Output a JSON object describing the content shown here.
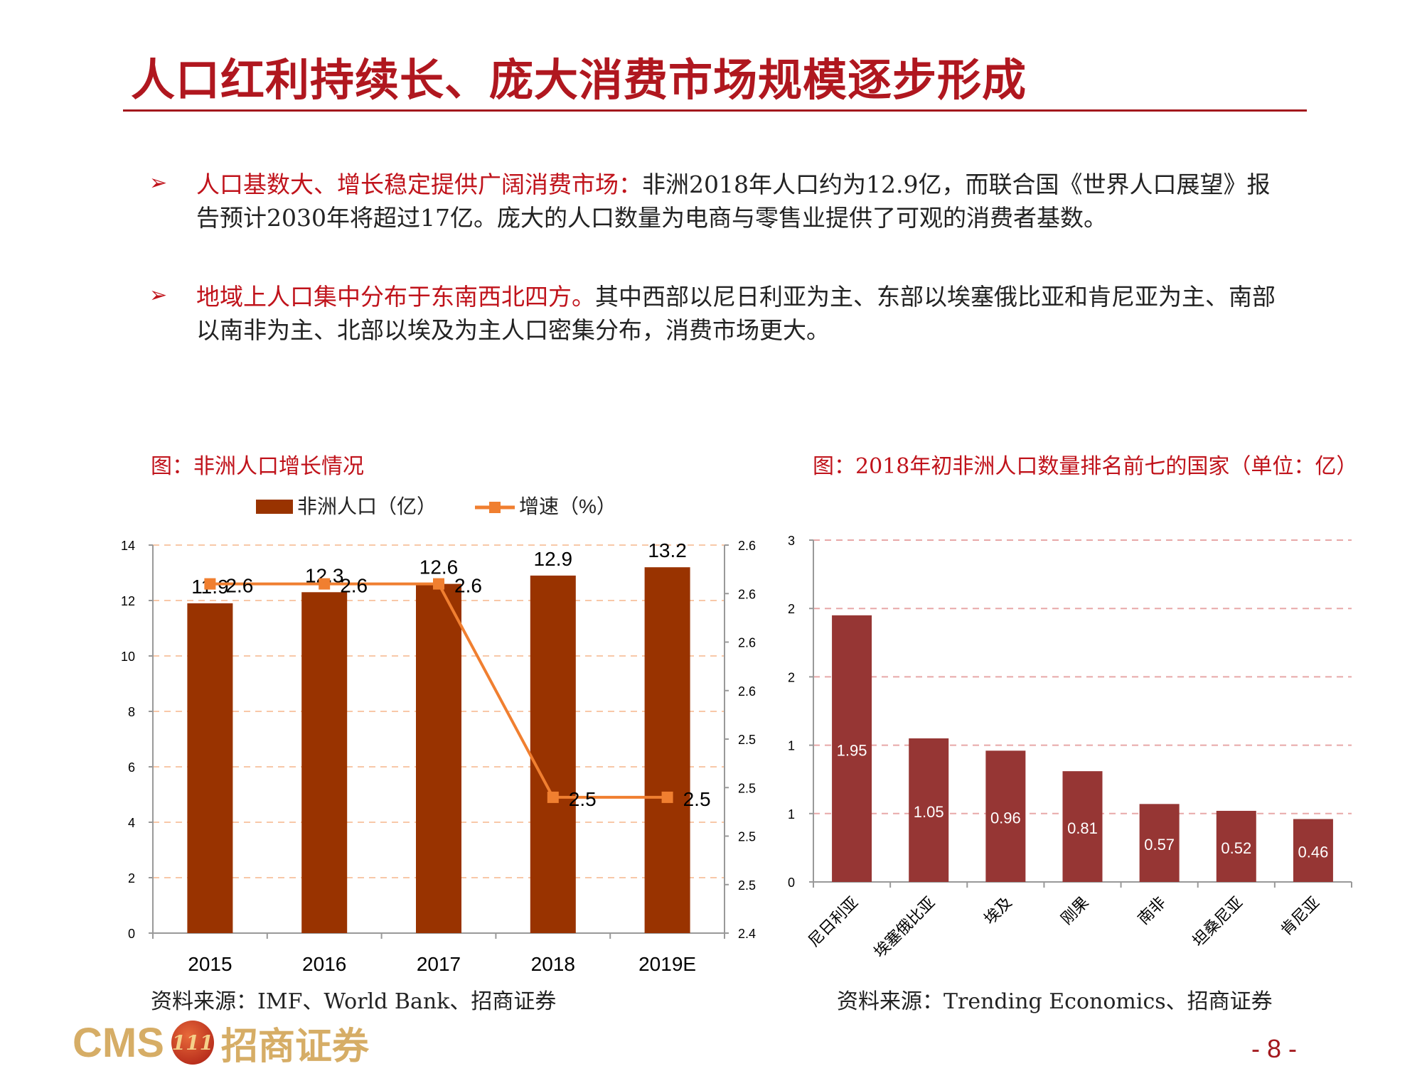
{
  "title": "人口红利持续长、庞大消费市场规模逐步形成",
  "bullets": [
    {
      "highlight": "人口基数大、增长稳定提供广阔消费市场：",
      "text": "非洲2018年人口约为12.9亿，而联合国《世界人口展望》报告预计2030年将超过17亿。庞大的人口数量为电商与零售业提供了可观的消费者基数。"
    },
    {
      "highlight": "地域上人口集中分布于东南西北四方。",
      "text": "其中西部以尼日利亚为主、东部以埃塞俄比亚和肯尼亚为主、南部以南非为主、北部以埃及为主人口密集分布，消费市场更大。"
    }
  ],
  "bullet_icon": "arrowhead-icon",
  "left_caption": "图：非洲人口增长情况",
  "right_caption": "图：2018年初非洲人口数量排名前七的国家（单位：亿）",
  "left_source": "资料来源：IMF、World Bank、招商证券",
  "right_source": "资料来源：Trending Economics、招商证券",
  "footer": {
    "logo_text": "CMS",
    "logo_cn": "招商证券",
    "badge": "111",
    "page": "- 8 -"
  },
  "chart_data": [
    {
      "type": "bar+line",
      "categories": [
        "2015",
        "2016",
        "2017",
        "2018",
        "2019E"
      ],
      "series": [
        {
          "name": "非洲人口（亿）",
          "type": "bar",
          "axis": "left",
          "values": [
            11.9,
            12.3,
            12.6,
            12.9,
            13.2
          ],
          "labels": [
            "11.9",
            "12.3",
            "12.6",
            "12.9",
            "13.2"
          ],
          "color": "#993300"
        },
        {
          "name": "增速（%）",
          "type": "line",
          "axis": "right",
          "values": [
            2.58,
            2.58,
            2.58,
            2.47,
            2.47
          ],
          "labels": [
            "2.6",
            "2.6",
            "2.6",
            "2.5",
            "2.5"
          ],
          "color": "#f07f30"
        }
      ],
      "ylim_left": [
        0,
        14
      ],
      "left_ticks": [
        "0",
        "2",
        "4",
        "6",
        "8",
        "10",
        "12",
        "14"
      ],
      "ylim_right": [
        2.4,
        2.6
      ],
      "right_ticks": [
        "2.4",
        "2.5",
        "2.5",
        "2.5",
        "2.5",
        "2.6",
        "2.6",
        "2.6",
        "2.6"
      ],
      "grid": true,
      "legend": "top"
    },
    {
      "type": "bar",
      "categories": [
        "尼日利亚",
        "埃塞俄比亚",
        "埃及",
        "刚果",
        "南非",
        "坦桑尼亚",
        "肯尼亚"
      ],
      "values": [
        1.95,
        1.05,
        0.96,
        0.81,
        0.57,
        0.52,
        0.46
      ],
      "labels": [
        "1.95",
        "1.05",
        "0.96",
        "0.81",
        "0.57",
        "0.52",
        "0.46"
      ],
      "ylim": [
        0,
        2.5
      ],
      "ticks": [
        "0",
        "1",
        "1",
        "2",
        "2",
        "3"
      ],
      "color": "#963634",
      "grid": true
    }
  ]
}
